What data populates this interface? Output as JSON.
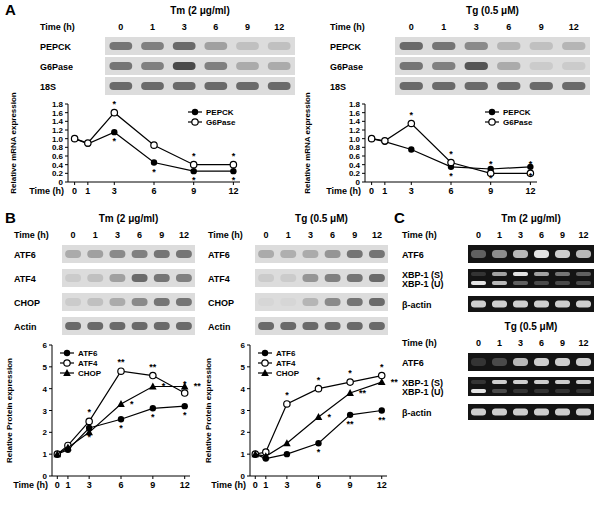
{
  "panels": [
    {
      "letter": "A",
      "groups": [
        {
          "title": "Tm (2 μg/ml)",
          "time_label": "Time (h)",
          "times": [
            0,
            1,
            3,
            6,
            9,
            12
          ],
          "rows": [
            {
              "label": "PEPCK",
              "bands": [
                0.55,
                0.5,
                0.6,
                0.35,
                0.2,
                0.2
              ]
            },
            {
              "label": "G6Pase",
              "bands": [
                0.55,
                0.5,
                0.75,
                0.5,
                0.3,
                0.3
              ]
            },
            {
              "label": "18S",
              "bands": [
                0.6,
                0.6,
                0.6,
                0.6,
                0.6,
                0.6
              ]
            }
          ]
        },
        {
          "title": "Tg (0.5 μM)",
          "time_label": "Time (h)",
          "times": [
            0,
            1,
            3,
            6,
            9,
            12
          ],
          "rows": [
            {
              "label": "PEPCK",
              "bands": [
                0.6,
                0.55,
                0.45,
                0.25,
                0.2,
                0.25
              ]
            },
            {
              "label": "G6Pase",
              "bands": [
                0.55,
                0.5,
                0.7,
                0.3,
                0.15,
                0.15
              ]
            },
            {
              "label": "18S",
              "bands": [
                0.6,
                0.6,
                0.6,
                0.6,
                0.6,
                0.6
              ]
            }
          ]
        }
      ]
    },
    {
      "letter": "B",
      "groups": [
        {
          "title": "Tm (2 μg/ml)",
          "time_label": "Time (h)",
          "times": [
            0,
            1,
            3,
            6,
            9,
            12
          ],
          "rows": [
            {
              "label": "ATF6",
              "bands": [
                0.3,
                0.35,
                0.45,
                0.5,
                0.55,
                0.55
              ]
            },
            {
              "label": "ATF4",
              "bands": [
                0.15,
                0.2,
                0.35,
                0.6,
                0.55,
                0.5
              ]
            },
            {
              "label": "CHOP",
              "bands": [
                0.15,
                0.2,
                0.3,
                0.45,
                0.55,
                0.55
              ]
            },
            {
              "label": "Actin",
              "bands": [
                0.6,
                0.6,
                0.6,
                0.6,
                0.6,
                0.6
              ]
            }
          ]
        },
        {
          "title": "Tg (0.5 μM)",
          "time_label": "Time (h)",
          "times": [
            0,
            1,
            3,
            6,
            9,
            12
          ],
          "rows": [
            {
              "label": "ATF6",
              "bands": [
                0.3,
                0.28,
                0.3,
                0.4,
                0.55,
                0.55
              ]
            },
            {
              "label": "ATF4",
              "bands": [
                0.15,
                0.15,
                0.4,
                0.5,
                0.55,
                0.6
              ]
            },
            {
              "label": "CHOP",
              "bands": [
                0.1,
                0.1,
                0.25,
                0.45,
                0.55,
                0.6
              ]
            },
            {
              "label": "Actin",
              "bands": [
                0.6,
                0.6,
                0.6,
                0.6,
                0.6,
                0.6
              ]
            }
          ]
        }
      ]
    },
    {
      "letter": "C",
      "groups": [
        {
          "title": "Tm (2 μg/ml)",
          "time_label": "Time (h)",
          "times": [
            0,
            1,
            3,
            6,
            9,
            12
          ],
          "rows": [
            {
              "label": "ATF6",
              "bands": [
                0.3,
                0.5,
                0.7,
                0.9,
                0.8,
                0.7
              ]
            },
            {
              "label": "XBP-1 (S)",
              "bands": [
                0.1,
                0.6,
                0.9,
                0.6,
                0.4,
                0.3
              ]
            },
            {
              "label": "XBP-1 (U)",
              "bands": [
                0.9,
                0.7,
                0.3,
                0.2,
                0.2,
                0.2
              ]
            },
            {
              "label": "β-actin",
              "bands": [
                0.8,
                0.8,
                0.8,
                0.8,
                0.8,
                0.8
              ]
            }
          ]
        },
        {
          "title": "Tg (0.5 μM)",
          "time_label": "Time (h)",
          "times": [
            0,
            1,
            3,
            6,
            9,
            12
          ],
          "rows": [
            {
              "label": "ATF6",
              "bands": [
                0.1,
                0.2,
                0.7,
                0.8,
                0.8,
                0.8
              ]
            },
            {
              "label": "XBP-1 (S)",
              "bands": [
                0.1,
                0.8,
                0.8,
                0.8,
                0.8,
                0.8
              ]
            },
            {
              "label": "XBP-1 (U)",
              "bands": [
                0.9,
                0.2,
                0.1,
                0.1,
                0.1,
                0.1
              ]
            },
            {
              "label": "β-actin",
              "bands": [
                0.8,
                0.8,
                0.8,
                0.8,
                0.8,
                0.8
              ]
            }
          ]
        }
      ]
    }
  ],
  "chart_data": [
    {
      "type": "line",
      "x_label": "Time (h)",
      "y_label": "Relative mRNA expression",
      "x": [
        0,
        1,
        3,
        6,
        9,
        12
      ],
      "xlim": [
        -0.5,
        12.5
      ],
      "xticks": [
        0,
        1,
        3,
        6,
        9,
        12
      ],
      "ylim": [
        0,
        1.8
      ],
      "yticks": [
        0,
        0.2,
        0.4,
        0.6,
        0.8,
        {
          "value": 1,
          "label": "1.0"
        },
        1.2,
        1.4,
        1.6,
        1.8
      ],
      "grid": false,
      "legend": "upper right",
      "series": [
        {
          "name": "PEPCK",
          "color": "#000000",
          "marker": "circle",
          "values": [
            1.0,
            0.88,
            1.15,
            0.45,
            0.25,
            0.25
          ],
          "significance": [
            null,
            null,
            "*",
            "*",
            "*",
            "*"
          ]
        },
        {
          "name": "G6Pase",
          "color": "#000000",
          "marker": "open_circle",
          "values": [
            1.0,
            0.9,
            1.6,
            0.85,
            0.4,
            0.4
          ],
          "significance": [
            null,
            null,
            "*",
            null,
            "*",
            "*"
          ]
        }
      ]
    },
    {
      "type": "line",
      "x_label": "Time (h)",
      "y_label": "Relative mRNA expression",
      "x": [
        0,
        1,
        3,
        6,
        9,
        12
      ],
      "xlim": [
        -0.5,
        12.5
      ],
      "xticks": [
        0,
        1,
        3,
        6,
        9,
        12
      ],
      "ylim": [
        0,
        1.8
      ],
      "yticks": [
        0,
        0.2,
        0.4,
        0.6,
        0.8,
        {
          "value": 1,
          "label": "1.0"
        },
        1.2,
        1.4,
        1.6,
        1.8
      ],
      "grid": false,
      "legend": "upper right",
      "series": [
        {
          "name": "PEPCK",
          "color": "#000000",
          "marker": "circle",
          "values": [
            1.0,
            0.93,
            0.75,
            0.35,
            0.3,
            0.35
          ],
          "significance": [
            null,
            null,
            null,
            "*",
            "*",
            "*"
          ]
        },
        {
          "name": "G6Pase",
          "color": "#000000",
          "marker": "open_circle",
          "values": [
            1.0,
            0.95,
            1.35,
            0.45,
            0.2,
            0.2
          ],
          "significance": [
            null,
            null,
            "*",
            "*",
            "*",
            "*"
          ]
        }
      ]
    },
    {
      "type": "line",
      "x_label": "Time (h)",
      "y_label": "Relative Protein expression",
      "x": [
        0,
        1,
        3,
        6,
        9,
        12
      ],
      "xlim": [
        -0.5,
        12.5
      ],
      "xticks": [
        0,
        1,
        3,
        6,
        9,
        12
      ],
      "ylim": [
        0,
        6
      ],
      "yticks": [
        0,
        1,
        2,
        3,
        4,
        5,
        6
      ],
      "grid": false,
      "legend": "upper left",
      "series": [
        {
          "name": "ATF6",
          "color": "#000000",
          "marker": "circle",
          "values": [
            1.0,
            1.2,
            2.2,
            2.6,
            3.1,
            3.2
          ],
          "significance": [
            null,
            null,
            "*",
            "*",
            "*",
            "*"
          ]
        },
        {
          "name": "ATF4",
          "color": "#000000",
          "marker": "open_circle",
          "values": [
            1.0,
            1.4,
            2.5,
            4.8,
            4.6,
            3.8
          ],
          "significance": [
            null,
            null,
            "*",
            "**",
            "**",
            "*"
          ]
        },
        {
          "name": "CHOP",
          "color": "#000000",
          "marker": "triangle",
          "values": [
            1.0,
            1.3,
            2.0,
            3.3,
            4.1,
            4.1
          ],
          "significance": [
            null,
            null,
            null,
            "*",
            "*",
            "**"
          ]
        }
      ]
    },
    {
      "type": "line",
      "x_label": "Time (h)",
      "y_label": "Relative Protein expression",
      "x": [
        0,
        1,
        3,
        6,
        9,
        12
      ],
      "xlim": [
        -0.5,
        12.5
      ],
      "xticks": [
        0,
        1,
        3,
        6,
        9,
        12
      ],
      "ylim": [
        0,
        6
      ],
      "yticks": [
        0,
        1,
        2,
        3,
        4,
        5,
        6
      ],
      "grid": false,
      "legend": "upper left",
      "series": [
        {
          "name": "ATF6",
          "color": "#000000",
          "marker": "circle",
          "values": [
            1.0,
            0.8,
            1.0,
            1.5,
            2.8,
            3.0
          ],
          "significance": [
            null,
            null,
            null,
            "*",
            "**",
            "**"
          ]
        },
        {
          "name": "ATF4",
          "color": "#000000",
          "marker": "open_circle",
          "values": [
            1.0,
            1.1,
            3.3,
            4.0,
            4.3,
            4.6
          ],
          "significance": [
            null,
            null,
            "*",
            "*",
            "*",
            "*"
          ]
        },
        {
          "name": "CHOP",
          "color": "#000000",
          "marker": "triangle",
          "values": [
            1.0,
            0.9,
            1.5,
            2.7,
            3.8,
            4.3
          ],
          "significance": [
            null,
            null,
            null,
            "*",
            "**",
            "**"
          ]
        }
      ]
    }
  ]
}
